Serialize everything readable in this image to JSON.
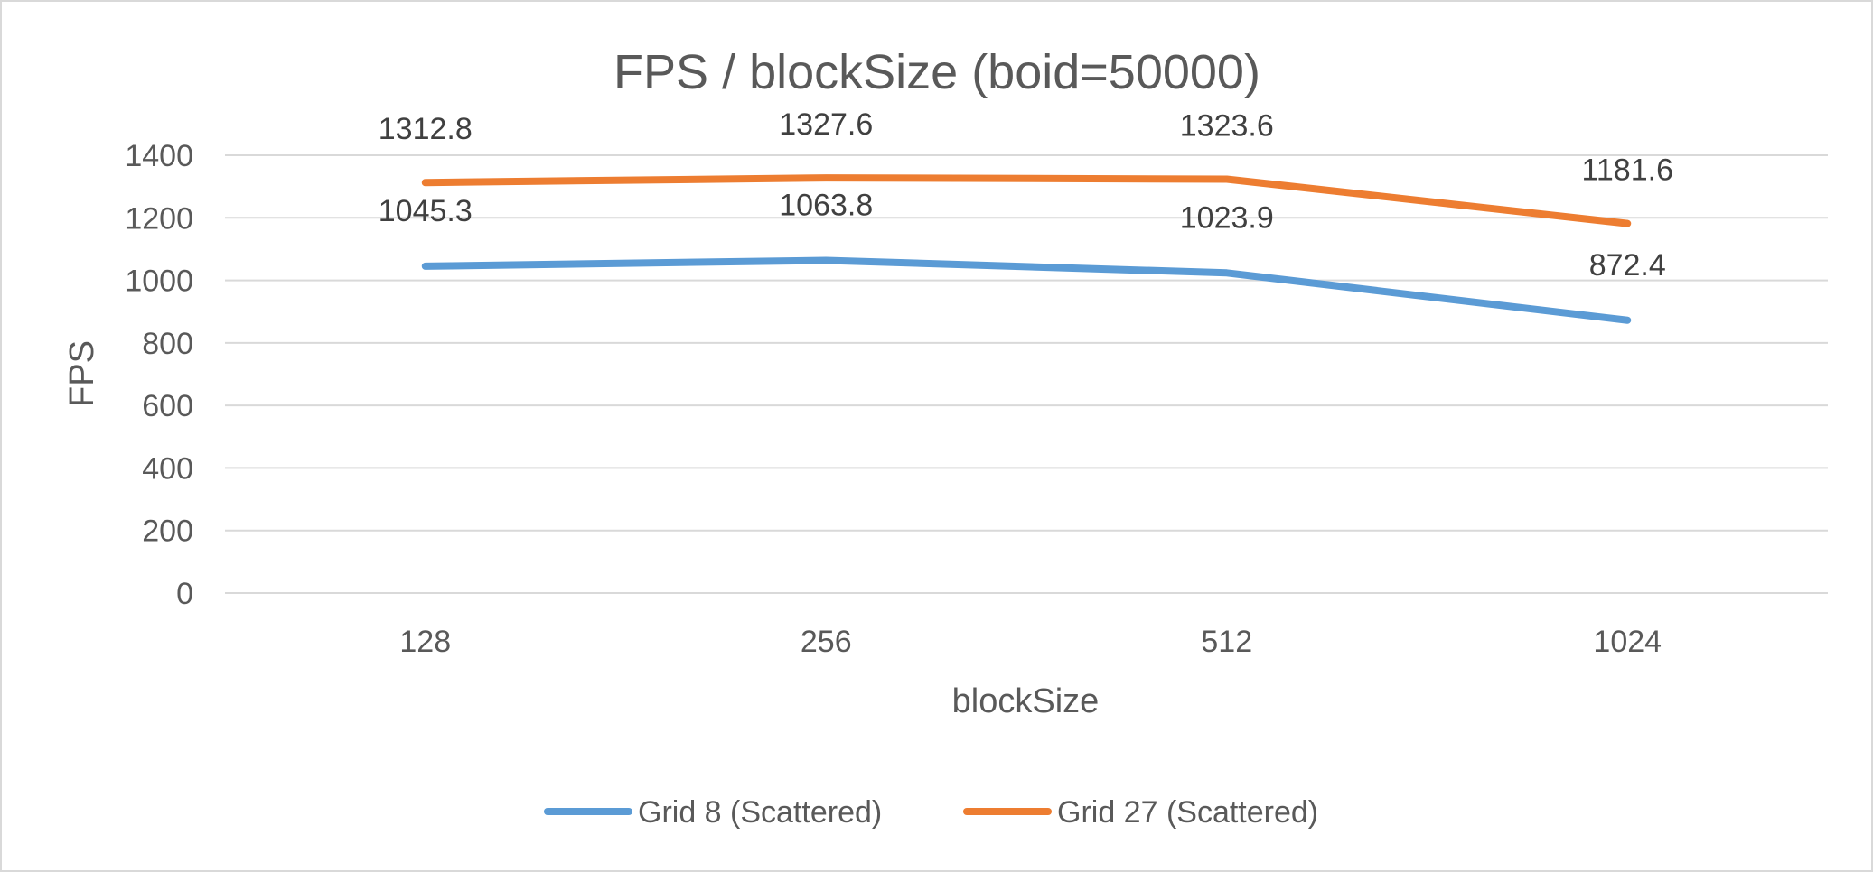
{
  "chart_data": {
    "type": "line",
    "title": "FPS / blockSize (boid=50000)",
    "xlabel": "blockSize",
    "ylabel": "FPS",
    "categories": [
      "128",
      "256",
      "512",
      "1024"
    ],
    "ylim": [
      0,
      1400
    ],
    "yticks": [
      0,
      200,
      400,
      600,
      800,
      1000,
      1200,
      1400
    ],
    "grid": true,
    "legend_position": "bottom",
    "series": [
      {
        "name": "Grid 8 (Scattered)",
        "color": "#5b9bd5",
        "values": [
          1045.3,
          1063.8,
          1023.9,
          872.4
        ],
        "labels": [
          "1045.3",
          "1063.8",
          "1023.9",
          "872.4"
        ]
      },
      {
        "name": "Grid 27 (Scattered)",
        "color": "#ed7d31",
        "values": [
          1312.8,
          1327.6,
          1323.6,
          1181.6
        ],
        "labels": [
          "1312.8",
          "1327.6",
          "1323.6",
          "1181.6"
        ]
      }
    ]
  }
}
